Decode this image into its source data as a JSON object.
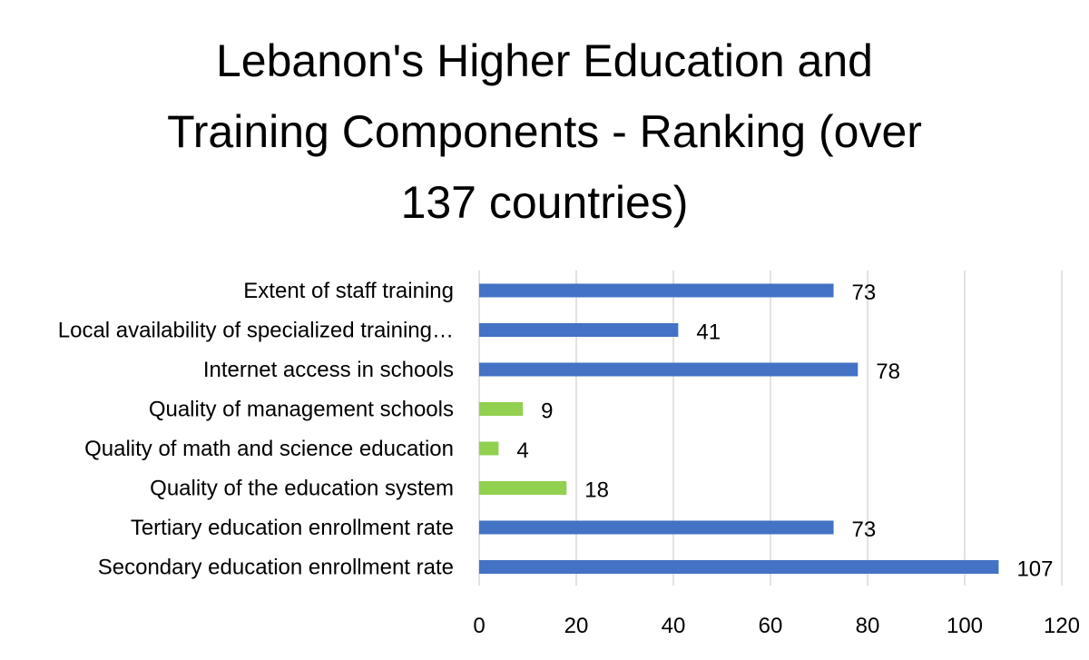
{
  "chart_data": {
    "type": "bar",
    "orientation": "horizontal",
    "title_lines": [
      "Lebanon's Higher Education and",
      "Training Components - Ranking (over",
      "137 countries)"
    ],
    "xlabel": "",
    "ylabel": "",
    "xlim": [
      0,
      120
    ],
    "x_ticks": [
      0,
      20,
      40,
      60,
      80,
      100,
      120
    ],
    "grid": "vertical",
    "legend": "none",
    "categories": [
      "Extent of staff training",
      "Local availability of specialized training…",
      "Internet access in schools",
      "Quality of management schools",
      "Quality of math and science education",
      "Quality of the education system",
      "Tertiary education enrollment rate",
      "Secondary education enrollment rate"
    ],
    "values": [
      73,
      41,
      78,
      9,
      4,
      18,
      73,
      107
    ],
    "bar_colors": [
      "#4472c4",
      "#4472c4",
      "#4472c4",
      "#92d050",
      "#92d050",
      "#92d050",
      "#4472c4",
      "#4472c4"
    ],
    "data_labels": [
      "73",
      "41",
      "78",
      "9",
      "4",
      "18",
      "73",
      "107"
    ]
  },
  "colors": {
    "grid": "#d9d9d9",
    "text": "#000000"
  }
}
